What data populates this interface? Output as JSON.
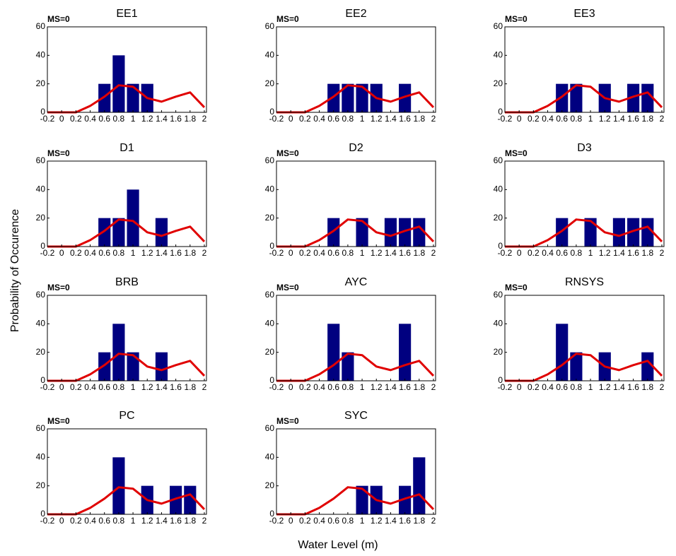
{
  "figure": {
    "xlabel": "Water Level (m)",
    "ylabel": "Probability of Occurence"
  },
  "chart_data": [
    {
      "type": "bar",
      "title": "EE1",
      "annotation": "MS=0",
      "xlim": [
        -0.2,
        2.03
      ],
      "ylim": [
        0,
        60
      ],
      "xticks": [
        -0.2,
        0,
        0.2,
        0.4,
        0.6,
        0.8,
        1,
        1.2,
        1.4,
        1.6,
        1.8,
        2
      ],
      "yticks": [
        0,
        20,
        40,
        60
      ],
      "bars": {
        "color": "#000080",
        "x": [
          0.6,
          0.8,
          1,
          1.2
        ],
        "values": [
          20,
          40,
          20,
          20
        ]
      },
      "line": {
        "color": "#e00000",
        "x": [
          -0.2,
          0,
          0.2,
          0.4,
          0.6,
          0.8,
          1,
          1.2,
          1.4,
          1.6,
          1.8,
          2
        ],
        "values": [
          0,
          0,
          0,
          4.5,
          11,
          19,
          18,
          10,
          7.5,
          11,
          14,
          3.5
        ]
      }
    },
    {
      "type": "bar",
      "title": "EE2",
      "annotation": "MS=0",
      "xlim": [
        -0.2,
        2.03
      ],
      "ylim": [
        0,
        60
      ],
      "xticks": [
        -0.2,
        0,
        0.2,
        0.4,
        0.6,
        0.8,
        1,
        1.2,
        1.4,
        1.6,
        1.8,
        2
      ],
      "yticks": [
        0,
        20,
        40,
        60
      ],
      "bars": {
        "color": "#000080",
        "x": [
          0.6,
          0.8,
          1,
          1.2,
          1.6
        ],
        "values": [
          20,
          20,
          20,
          20,
          20
        ]
      },
      "line": {
        "color": "#e00000",
        "x": [
          -0.2,
          0,
          0.2,
          0.4,
          0.6,
          0.8,
          1,
          1.2,
          1.4,
          1.6,
          1.8,
          2
        ],
        "values": [
          0,
          0,
          0,
          4.5,
          11,
          19,
          18,
          10,
          7.5,
          11,
          14,
          3.5
        ]
      }
    },
    {
      "type": "bar",
      "title": "EE3",
      "annotation": "MS=0",
      "xlim": [
        -0.2,
        2.03
      ],
      "ylim": [
        0,
        60
      ],
      "xticks": [
        -0.2,
        0,
        0.2,
        0.4,
        0.6,
        0.8,
        1,
        1.2,
        1.4,
        1.6,
        1.8,
        2
      ],
      "yticks": [
        0,
        20,
        40,
        60
      ],
      "bars": {
        "color": "#000080",
        "x": [
          0.6,
          0.8,
          1.2,
          1.6,
          1.8
        ],
        "values": [
          20,
          20,
          20,
          20,
          20
        ]
      },
      "line": {
        "color": "#e00000",
        "x": [
          -0.2,
          0,
          0.2,
          0.4,
          0.6,
          0.8,
          1,
          1.2,
          1.4,
          1.6,
          1.8,
          2
        ],
        "values": [
          0,
          0,
          0,
          4.5,
          11,
          19,
          18,
          10,
          7.5,
          11,
          14,
          3.5
        ]
      }
    },
    {
      "type": "bar",
      "title": "D1",
      "annotation": "MS=0",
      "xlim": [
        -0.2,
        2.03
      ],
      "ylim": [
        0,
        60
      ],
      "xticks": [
        -0.2,
        0,
        0.2,
        0.4,
        0.6,
        0.8,
        1,
        1.2,
        1.4,
        1.6,
        1.8,
        2
      ],
      "yticks": [
        0,
        20,
        40,
        60
      ],
      "bars": {
        "color": "#000080",
        "x": [
          0.6,
          0.8,
          1,
          1.4
        ],
        "values": [
          20,
          20,
          40,
          20
        ]
      },
      "line": {
        "color": "#e00000",
        "x": [
          -0.2,
          0,
          0.2,
          0.4,
          0.6,
          0.8,
          1,
          1.2,
          1.4,
          1.6,
          1.8,
          2
        ],
        "values": [
          0,
          0,
          0,
          4.5,
          11,
          19,
          18,
          10,
          7.5,
          11,
          14,
          3.5
        ]
      }
    },
    {
      "type": "bar",
      "title": "D2",
      "annotation": "MS=0",
      "xlim": [
        -0.2,
        2.03
      ],
      "ylim": [
        0,
        60
      ],
      "xticks": [
        -0.2,
        0,
        0.2,
        0.4,
        0.6,
        0.8,
        1,
        1.2,
        1.4,
        1.6,
        1.8,
        2
      ],
      "yticks": [
        0,
        20,
        40,
        60
      ],
      "bars": {
        "color": "#000080",
        "x": [
          0.6,
          1,
          1.4,
          1.6,
          1.8
        ],
        "values": [
          20,
          20,
          20,
          20,
          20
        ]
      },
      "line": {
        "color": "#e00000",
        "x": [
          -0.2,
          0,
          0.2,
          0.4,
          0.6,
          0.8,
          1,
          1.2,
          1.4,
          1.6,
          1.8,
          2
        ],
        "values": [
          0,
          0,
          0,
          4.5,
          11,
          19,
          18,
          10,
          7.5,
          11,
          14,
          3.5
        ]
      }
    },
    {
      "type": "bar",
      "title": "D3",
      "annotation": "MS=0",
      "xlim": [
        -0.2,
        2.03
      ],
      "ylim": [
        0,
        60
      ],
      "xticks": [
        -0.2,
        0,
        0.2,
        0.4,
        0.6,
        0.8,
        1,
        1.2,
        1.4,
        1.6,
        1.8,
        2
      ],
      "yticks": [
        0,
        20,
        40,
        60
      ],
      "bars": {
        "color": "#000080",
        "x": [
          0.6,
          1,
          1.4,
          1.6,
          1.8
        ],
        "values": [
          20,
          20,
          20,
          20,
          20
        ]
      },
      "line": {
        "color": "#e00000",
        "x": [
          -0.2,
          0,
          0.2,
          0.4,
          0.6,
          0.8,
          1,
          1.2,
          1.4,
          1.6,
          1.8,
          2
        ],
        "values": [
          0,
          0,
          0,
          4.5,
          11,
          19,
          18,
          10,
          7.5,
          11,
          14,
          3.5
        ]
      }
    },
    {
      "type": "bar",
      "title": "BRB",
      "annotation": "MS=0",
      "xlim": [
        -0.2,
        2.03
      ],
      "ylim": [
        0,
        60
      ],
      "xticks": [
        -0.2,
        0,
        0.2,
        0.4,
        0.6,
        0.8,
        1,
        1.2,
        1.4,
        1.6,
        1.8,
        2
      ],
      "yticks": [
        0,
        20,
        40,
        60
      ],
      "bars": {
        "color": "#000080",
        "x": [
          0.6,
          0.8,
          1,
          1.4
        ],
        "values": [
          20,
          40,
          20,
          20
        ]
      },
      "line": {
        "color": "#e00000",
        "x": [
          -0.2,
          0,
          0.2,
          0.4,
          0.6,
          0.8,
          1,
          1.2,
          1.4,
          1.6,
          1.8,
          2
        ],
        "values": [
          0,
          0,
          0,
          4.5,
          11,
          19,
          18,
          10,
          7.5,
          11,
          14,
          3.5
        ]
      }
    },
    {
      "type": "bar",
      "title": "AYC",
      "annotation": "MS=0",
      "xlim": [
        -0.2,
        2.03
      ],
      "ylim": [
        0,
        60
      ],
      "xticks": [
        -0.2,
        0,
        0.2,
        0.4,
        0.6,
        0.8,
        1,
        1.2,
        1.4,
        1.6,
        1.8,
        2
      ],
      "yticks": [
        0,
        20,
        40,
        60
      ],
      "bars": {
        "color": "#000080",
        "x": [
          0.6,
          0.8,
          1.6
        ],
        "values": [
          40,
          20,
          40
        ]
      },
      "line": {
        "color": "#e00000",
        "x": [
          -0.2,
          0,
          0.2,
          0.4,
          0.6,
          0.8,
          1,
          1.2,
          1.4,
          1.6,
          1.8,
          2
        ],
        "values": [
          0,
          0,
          0,
          4.5,
          11,
          19,
          18,
          10,
          7.5,
          11,
          14,
          3.5
        ]
      }
    },
    {
      "type": "bar",
      "title": "RNSYS",
      "annotation": "MS=0",
      "xlim": [
        -0.2,
        2.03
      ],
      "ylim": [
        0,
        60
      ],
      "xticks": [
        -0.2,
        0,
        0.2,
        0.4,
        0.6,
        0.8,
        1,
        1.2,
        1.4,
        1.6,
        1.8,
        2
      ],
      "yticks": [
        0,
        20,
        40,
        60
      ],
      "bars": {
        "color": "#000080",
        "x": [
          0.6,
          0.8,
          1.2,
          1.8
        ],
        "values": [
          40,
          20,
          20,
          20
        ]
      },
      "line": {
        "color": "#e00000",
        "x": [
          -0.2,
          0,
          0.2,
          0.4,
          0.6,
          0.8,
          1,
          1.2,
          1.4,
          1.6,
          1.8,
          2
        ],
        "values": [
          0,
          0,
          0,
          4.5,
          11,
          19,
          18,
          10,
          7.5,
          11,
          14,
          3.5
        ]
      }
    },
    {
      "type": "bar",
      "title": "PC",
      "annotation": "MS=0",
      "xlim": [
        -0.2,
        2.03
      ],
      "ylim": [
        0,
        60
      ],
      "xticks": [
        -0.2,
        0,
        0.2,
        0.4,
        0.6,
        0.8,
        1,
        1.2,
        1.4,
        1.6,
        1.8,
        2
      ],
      "yticks": [
        0,
        20,
        40,
        60
      ],
      "bars": {
        "color": "#000080",
        "x": [
          0.8,
          1.2,
          1.6,
          1.8
        ],
        "values": [
          40,
          20,
          20,
          20
        ]
      },
      "line": {
        "color": "#e00000",
        "x": [
          -0.2,
          0,
          0.2,
          0.4,
          0.6,
          0.8,
          1,
          1.2,
          1.4,
          1.6,
          1.8,
          2
        ],
        "values": [
          0,
          0,
          0,
          4.5,
          11,
          19,
          18,
          10,
          7.5,
          11,
          14,
          3.5
        ]
      }
    },
    {
      "type": "bar",
      "title": "SYC",
      "annotation": "MS=0",
      "xlim": [
        -0.2,
        2.03
      ],
      "ylim": [
        0,
        60
      ],
      "xticks": [
        -0.2,
        0,
        0.2,
        0.4,
        0.6,
        0.8,
        1,
        1.2,
        1.4,
        1.6,
        1.8,
        2
      ],
      "yticks": [
        0,
        20,
        40,
        60
      ],
      "bars": {
        "color": "#000080",
        "x": [
          1,
          1.2,
          1.6,
          1.8
        ],
        "values": [
          20,
          20,
          20,
          40
        ]
      },
      "line": {
        "color": "#e00000",
        "x": [
          -0.2,
          0,
          0.2,
          0.4,
          0.6,
          0.8,
          1,
          1.2,
          1.4,
          1.6,
          1.8,
          2
        ],
        "values": [
          0,
          0,
          0,
          4.5,
          11,
          19,
          18,
          10,
          7.5,
          11,
          14,
          3.5
        ]
      }
    }
  ]
}
